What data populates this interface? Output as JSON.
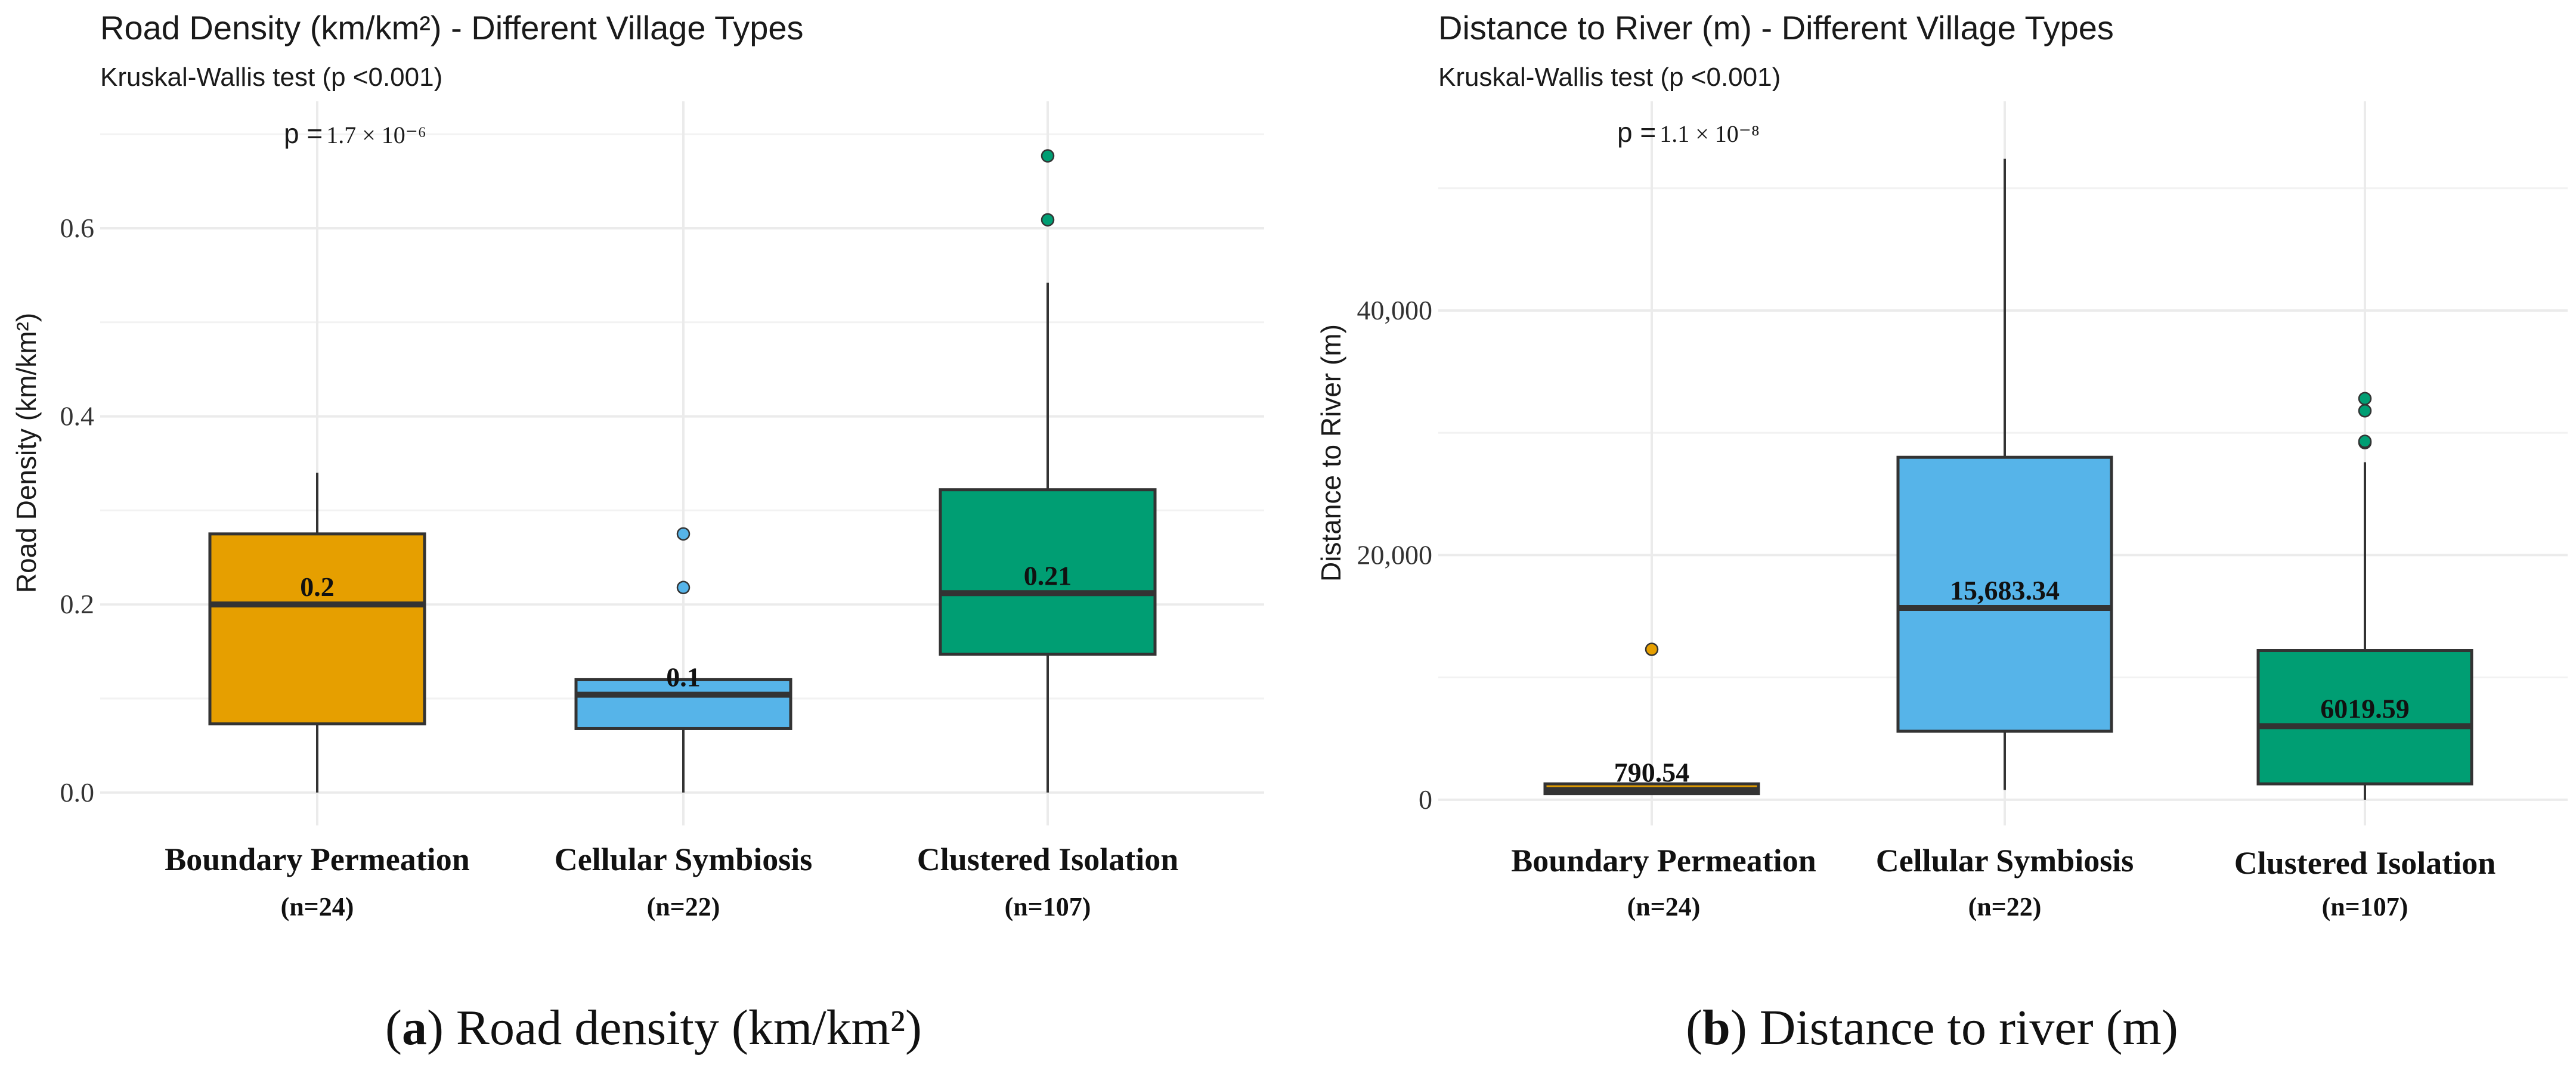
{
  "colors": {
    "boundary": "#E69F00",
    "cellular": "#56B4E9",
    "clustered": "#009E73",
    "grid": "#EBEBEB",
    "stroke": "#333333",
    "text": "#1a1a1a"
  },
  "chart_data": [
    {
      "type": "box",
      "title": "Road Density (km/km²)  - Different Village Types",
      "subtitle": "Kruskal-Wallis test (p <0.001)",
      "ylabel": "Road Density (km/km²)",
      "xlabel": "",
      "p_prefix": "p =",
      "p_value": "1.7 × 10⁻⁶",
      "ylim": [
        -0.035,
        0.735
      ],
      "yticks": [
        0.0,
        0.2,
        0.4,
        0.6
      ],
      "ytick_labels": [
        "0.0",
        "0.2",
        "0.4",
        "0.6"
      ],
      "minor_gridlines": [
        0.1,
        0.3,
        0.5,
        0.7
      ],
      "categories": [
        "Boundary Permeation",
        "Cellular Symbiosis",
        "Clustered Isolation"
      ],
      "counts": [
        "(n=24)",
        "(n=22)",
        "(n=107)"
      ],
      "boxes": [
        {
          "group": "Boundary Permeation",
          "min": 0.0,
          "q1": 0.073,
          "median": 0.2,
          "q3": 0.275,
          "max": 0.34,
          "outliers": [],
          "median_label": "0.2"
        },
        {
          "group": "Cellular Symbiosis",
          "min": 0.0,
          "q1": 0.068,
          "median": 0.104,
          "q3": 0.12,
          "max": 0.12,
          "outliers": [
            0.218,
            0.275
          ],
          "median_label": "0.1"
        },
        {
          "group": "Clustered Isolation",
          "min": 0.0,
          "q1": 0.147,
          "median": 0.212,
          "q3": 0.322,
          "max": 0.542,
          "outliers": [
            0.609,
            0.677
          ],
          "median_label": "0.21"
        }
      ],
      "caption_letter": "a",
      "caption_text": ") Road density (km/km²)"
    },
    {
      "type": "box",
      "title": "Distance to River (m)  - Different Village Types",
      "subtitle": "Kruskal-Wallis test (p <0.001)",
      "ylabel": "Distance to River (m)",
      "xlabel": "",
      "p_prefix": "p =",
      "p_value": "1.1 × 10⁻⁸",
      "ylim": [
        -2100,
        57100
      ],
      "yticks": [
        0,
        20000,
        40000
      ],
      "ytick_labels": [
        "0",
        "20,000",
        "40,000"
      ],
      "minor_gridlines": [
        10000,
        30000,
        50000
      ],
      "categories": [
        "Boundary Permeation",
        "Cellular Symbiosis",
        "Clustered Isolation"
      ],
      "counts": [
        "(n=24)",
        "(n=22)",
        "(n=107)"
      ],
      "boxes": [
        {
          "group": "Boundary Permeation",
          "min": 400,
          "q1": 500,
          "median": 790.54,
          "q3": 1300,
          "max": 1300,
          "outliers": [
            12300
          ],
          "median_label": "790.54"
        },
        {
          "group": "Cellular Symbiosis",
          "min": 800,
          "q1": 5600,
          "median": 15683.34,
          "q3": 28000,
          "max": 52400,
          "outliers": [],
          "median_label": "15,683.34"
        },
        {
          "group": "Clustered Isolation",
          "min": 0,
          "q1": 1300,
          "median": 6019.59,
          "q3": 12200,
          "max": 27600,
          "outliers": [
            29200,
            29300,
            31800,
            32800
          ],
          "median_label": "6019.59"
        }
      ],
      "caption_letter": "b",
      "caption_text": ") Distance to river (m)"
    }
  ]
}
